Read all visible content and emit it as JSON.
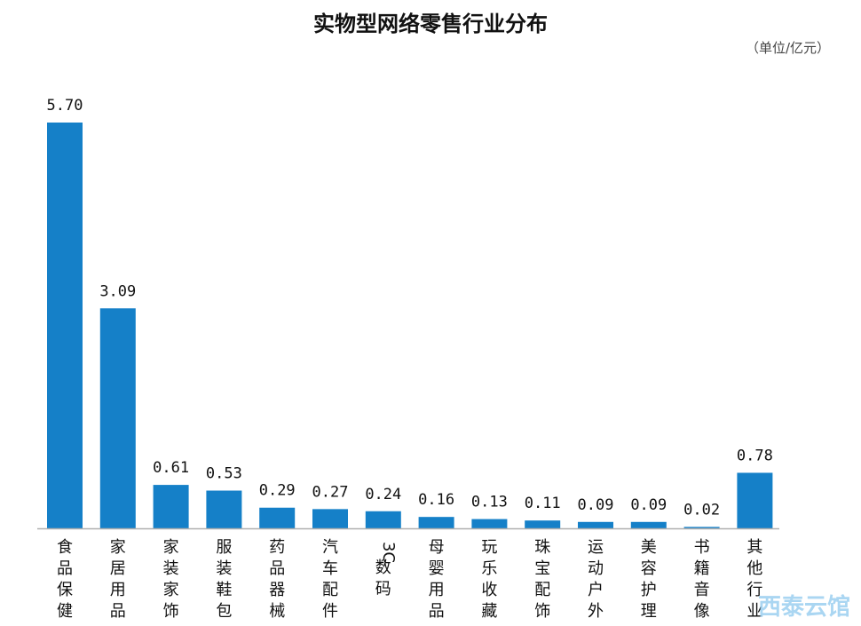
{
  "chart_data": {
    "type": "bar",
    "title": "实物型网络零售行业分布",
    "unit_label": "（单位/亿元）",
    "categories": [
      "食品保健",
      "家居用品",
      "家装家饰",
      "服装鞋包",
      "药品器械",
      "汽车配件",
      "3C数码",
      "母婴用品",
      "玩乐收藏",
      "珠宝配饰",
      "运动户外",
      "美容护理",
      "书籍音像",
      "其他行业"
    ],
    "value_labels": [
      "5.70",
      "3.09",
      "0.61",
      "0.53",
      "0.29",
      "0.27",
      "0.24",
      "0.16",
      "0.13",
      "0.11",
      "0.09",
      "0.09",
      "0.02",
      "0.78"
    ],
    "values": [
      5.7,
      3.09,
      0.61,
      0.53,
      0.29,
      0.27,
      0.24,
      0.16,
      0.13,
      0.11,
      0.09,
      0.09,
      0.02,
      0.78
    ],
    "xlabel": "",
    "ylabel": "",
    "ylim": [
      0,
      6
    ],
    "grid": false,
    "legend": "none",
    "bar_color": "#1580C8",
    "axis_color": "#b0b0b0"
  },
  "watermark": "西泰云馆"
}
